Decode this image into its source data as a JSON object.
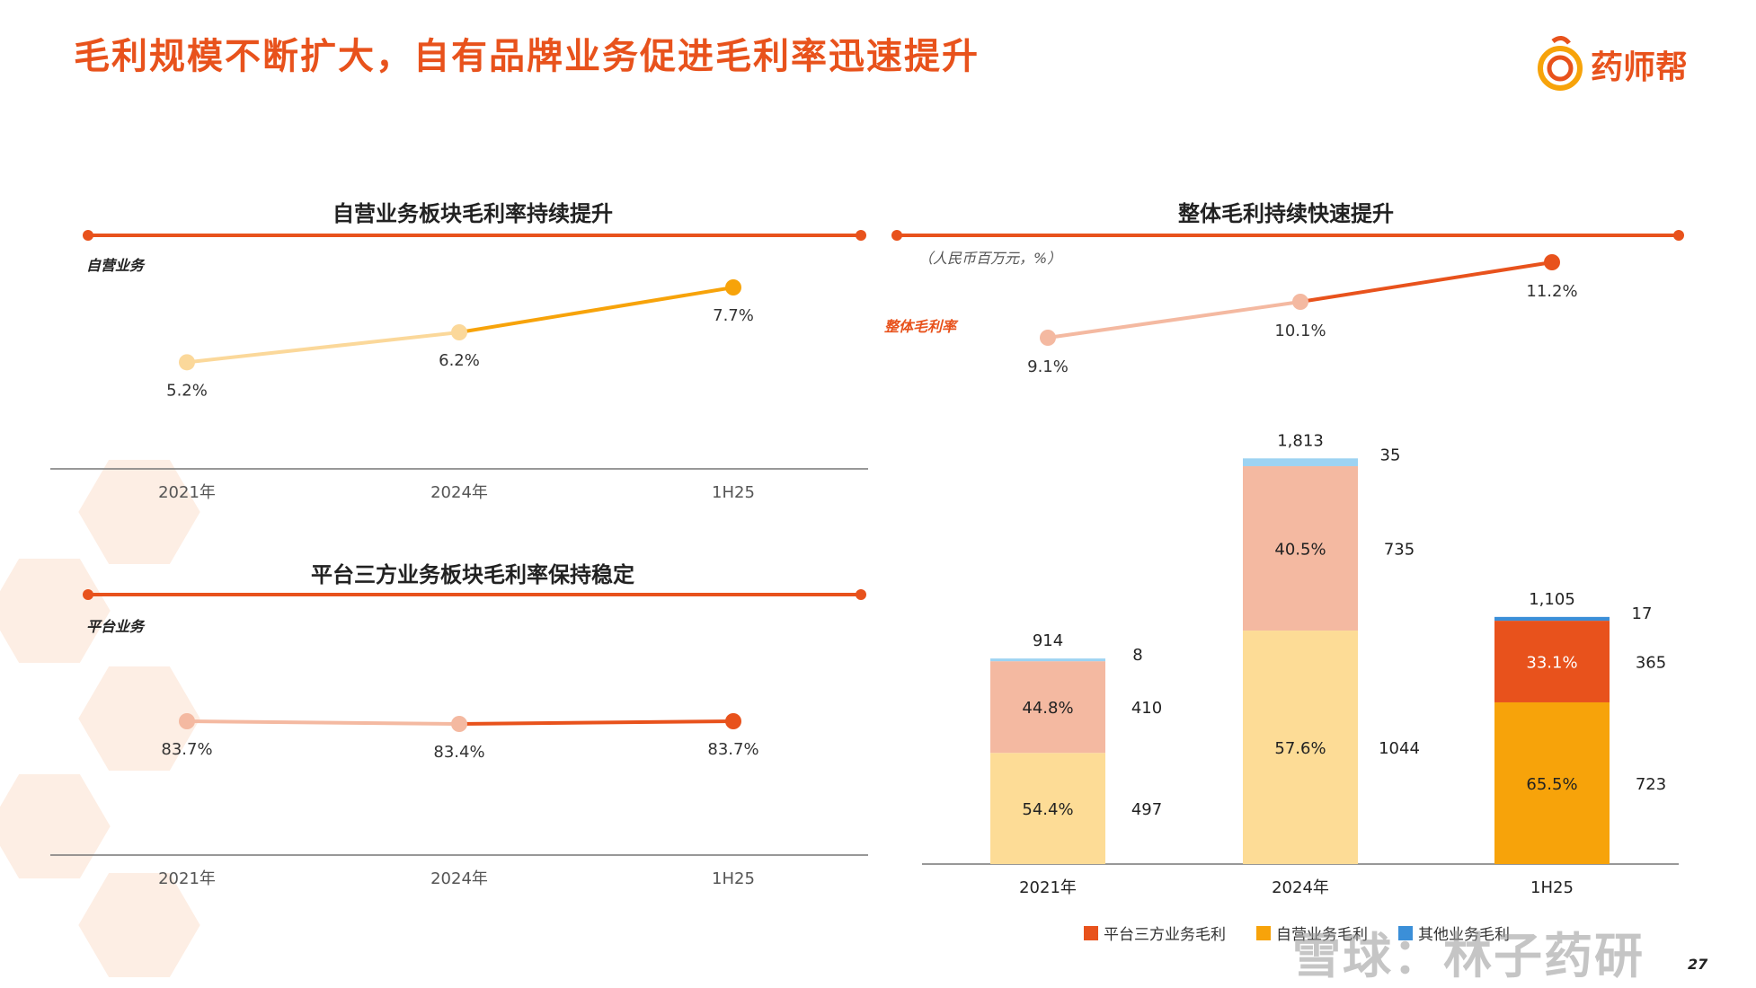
{
  "page": {
    "title": "毛利规模不断扩大，自有品牌业务促进毛利率迅速提升",
    "logo_text": "药师帮",
    "page_number": "27",
    "watermark": "雪球：林子药研"
  },
  "colors": {
    "accent": "#e8521c",
    "platform_bar": "#e8521c",
    "platform_bar_light": "#f4b9a1",
    "self_bar": "#f7a30a",
    "self_bar_light": "#fddc96",
    "other_bar": "#9dd3f2",
    "other_bar_dark": "#3b8fd8",
    "self_line_light": "#fbd89a",
    "self_line_dark": "#f7a30a",
    "platform_line_light": "#f4b9a1",
    "platform_line_dark": "#e8521c"
  },
  "chart_data": [
    {
      "id": "self-margin",
      "type": "line",
      "title": "自营业务板块毛利率持续提升",
      "series_label": "自营业务",
      "categories": [
        "2021年",
        "2024年",
        "1H25"
      ],
      "values": [
        5.2,
        6.2,
        7.7
      ],
      "value_labels": [
        "5.2%",
        "6.2%",
        "7.7%"
      ],
      "unit": "%"
    },
    {
      "id": "platform-margin",
      "type": "line",
      "title": "平台三方业务板块毛利率保持稳定",
      "series_label": "平台业务",
      "categories": [
        "2021年",
        "2024年",
        "1H25"
      ],
      "values": [
        83.7,
        83.4,
        83.7
      ],
      "value_labels": [
        "83.7%",
        "83.4%",
        "83.7%"
      ],
      "unit": "%"
    },
    {
      "id": "overall-gross-profit",
      "type": "bar",
      "stacked": true,
      "title": "整体毛利持续快速提升",
      "unit_note": "（人民币百万元，%）",
      "categories": [
        "2021年",
        "2024年",
        "1H25"
      ],
      "totals": [
        914,
        1813,
        1105
      ],
      "total_labels": [
        "914",
        "1,813",
        "1,105"
      ],
      "series": [
        {
          "name": "自营业务毛利",
          "values": [
            497,
            1044,
            723
          ],
          "value_labels": [
            "497",
            "1044",
            "723"
          ],
          "share_labels": [
            "54.4%",
            "57.6%",
            "65.5%"
          ]
        },
        {
          "name": "平台三方业务毛利",
          "values": [
            410,
            735,
            365
          ],
          "value_labels": [
            "410",
            "735",
            "365"
          ],
          "share_labels": [
            "44.8%",
            "40.5%",
            "33.1%"
          ]
        },
        {
          "name": "其他业务毛利",
          "values": [
            8,
            35,
            17
          ],
          "value_labels": [
            "8",
            "35",
            "17"
          ],
          "share_labels": [
            "",
            "",
            ""
          ]
        }
      ],
      "overlay_line": {
        "name": "整体毛利率",
        "values": [
          9.1,
          10.1,
          11.2
        ],
        "value_labels": [
          "9.1%",
          "10.1%",
          "11.2%"
        ]
      },
      "legend": [
        "平台三方业务毛利",
        "自营业务毛利",
        "其他业务毛利"
      ],
      "legend_position": "bottom"
    }
  ]
}
